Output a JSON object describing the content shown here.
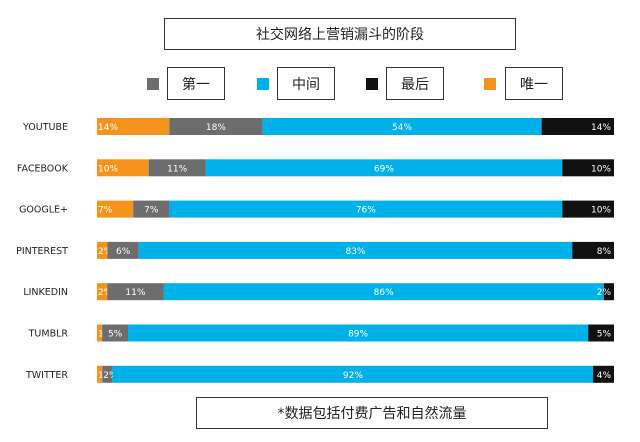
{
  "title": "社交网络上营销漏斗的阶段",
  "note": "*数据包括付费广告和自然流量",
  "legend": [
    {
      "key": "first",
      "label": "第一",
      "color": "#6d6d6d"
    },
    {
      "key": "middle",
      "label": "中间",
      "color": "#00b0e8"
    },
    {
      "key": "last",
      "label": "最后",
      "color": "#111111"
    },
    {
      "key": "only",
      "label": "唯一",
      "color": "#f4941c"
    }
  ],
  "chart_data": {
    "type": "bar",
    "orientation": "horizontal",
    "stacked": true,
    "title": "社交网络上营销漏斗的阶段",
    "categories": [
      "YOUTUBE",
      "FACEBOOK",
      "GOOGLE+",
      "PINTEREST",
      "LINKEDIN",
      "TUMBLR",
      "TWITTER"
    ],
    "series": [
      {
        "name": "唯一",
        "color": "#f4941c",
        "values": [
          14,
          10,
          7,
          2,
          2,
          1,
          1
        ]
      },
      {
        "name": "第一",
        "color": "#6d6d6d",
        "values": [
          18,
          11,
          7,
          6,
          11,
          5,
          2
        ]
      },
      {
        "name": "中间",
        "color": "#00b0e8",
        "values": [
          54,
          69,
          76,
          83,
          86,
          89,
          92
        ]
      },
      {
        "name": "最后",
        "color": "#111111",
        "values": [
          14,
          10,
          10,
          8,
          2,
          5,
          4
        ]
      }
    ],
    "unit": "%",
    "grid": false
  }
}
